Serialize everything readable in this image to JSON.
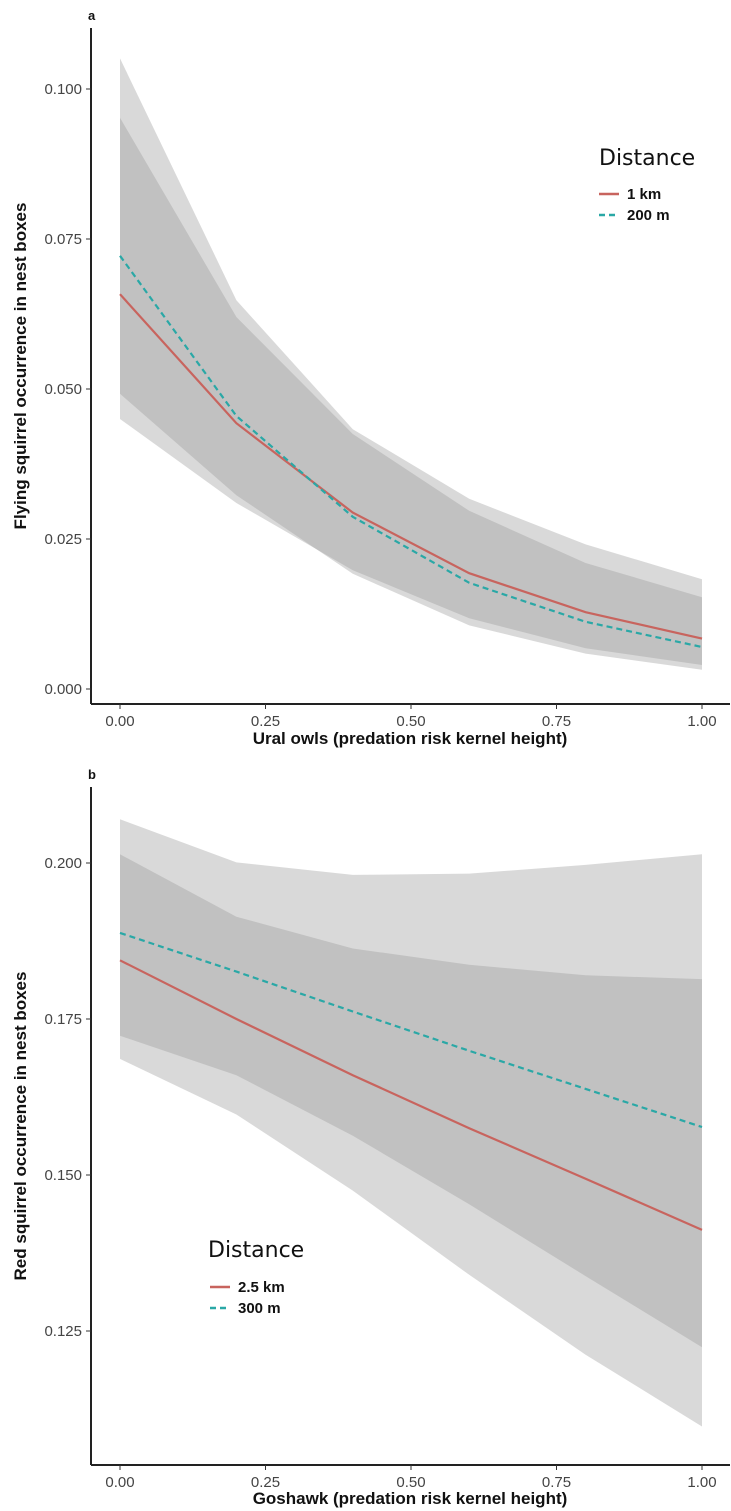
{
  "chart_data": [
    {
      "panel": "a",
      "type": "line",
      "xlabel": "Ural owls (predation risk kernel height)",
      "ylabel": "Flying squirrel occurrence in nest boxes",
      "xlim": [
        0,
        1
      ],
      "ylim": [
        0.0,
        0.1
      ],
      "x_ticks": [
        "0.00",
        "0.25",
        "0.50",
        "0.75",
        "1.00"
      ],
      "y_ticks": [
        "0.000",
        "0.025",
        "0.050",
        "0.075",
        "0.100"
      ],
      "x": [
        0.0,
        0.2,
        0.4,
        0.6,
        0.8,
        1.0
      ],
      "legend": {
        "title": "Distance",
        "placement": "top-right"
      },
      "series": [
        {
          "name": "1 km",
          "color": "#c8645e",
          "dash": "solid",
          "values": [
            0.0658,
            0.0443,
            0.0294,
            0.0193,
            0.0128,
            0.0084
          ],
          "ci_lower": [
            0.045,
            0.031,
            0.0198,
            0.0118,
            0.0068,
            0.004
          ],
          "ci_upper": [
            0.0952,
            0.062,
            0.0425,
            0.0297,
            0.021,
            0.0153
          ]
        },
        {
          "name": "200 m",
          "color": "#2aa8a6",
          "dash": "dashed",
          "values": [
            0.0722,
            0.0455,
            0.0287,
            0.0177,
            0.0112,
            0.007
          ],
          "ci_lower": [
            0.0492,
            0.0323,
            0.0192,
            0.0106,
            0.0059,
            0.0032
          ],
          "ci_upper": [
            0.1051,
            0.0648,
            0.0433,
            0.0317,
            0.0241,
            0.0183
          ]
        }
      ]
    },
    {
      "panel": "b",
      "type": "line",
      "xlabel": "Goshawk (predation risk kernel height)",
      "ylabel": "Red squirrel occurrence in nest boxes",
      "xlim": [
        0,
        1
      ],
      "ylim": [
        0.125,
        0.2
      ],
      "x_ticks": [
        "0.00",
        "0.25",
        "0.50",
        "0.75",
        "1.00"
      ],
      "y_ticks": [
        "0.125",
        "0.150",
        "0.175",
        "0.200"
      ],
      "x": [
        0.0,
        0.2,
        0.4,
        0.6,
        0.8,
        1.0
      ],
      "legend": {
        "title": "Distance",
        "placement": "bottom-left"
      },
      "series": [
        {
          "name": "2.5 km",
          "color": "#c8645e",
          "dash": "solid",
          "values": [
            0.1844,
            0.175,
            0.166,
            0.1575,
            0.1494,
            0.1412
          ],
          "ci_lower": [
            0.1686,
            0.1597,
            0.1475,
            0.134,
            0.1212,
            0.1097
          ],
          "ci_upper": [
            0.2014,
            0.1914,
            0.1863,
            0.1837,
            0.182,
            0.1814
          ]
        },
        {
          "name": "300 m",
          "color": "#2aa8a6",
          "dash": "dashed",
          "values": [
            0.1888,
            0.1826,
            0.1762,
            0.1699,
            0.1638,
            0.1577
          ],
          "ci_lower": [
            0.1723,
            0.166,
            0.1563,
            0.1453,
            0.1338,
            0.1224
          ],
          "ci_upper": [
            0.207,
            0.2001,
            0.1981,
            0.1983,
            0.1997,
            0.2014
          ]
        }
      ]
    }
  ]
}
